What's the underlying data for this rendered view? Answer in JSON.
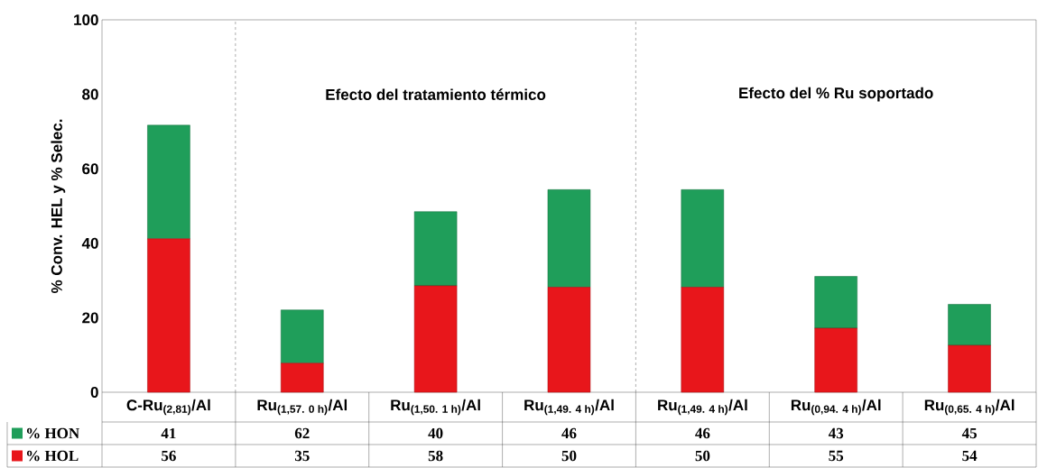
{
  "chart_data": {
    "type": "bar",
    "stacked": true,
    "ylabel": "% Conv. HEL y % Selec.",
    "legend": "bottom left",
    "categories": [
      "C-Ru$_{(2,81)}$/Al",
      "Ru$_{(1,57. 0 h)}$/Al",
      "Ru$_{(1,50. 1 h)}$/Al",
      "Ru$_{(1,49. 4 h)}$/Al",
      "Ru$_{(1,49. 4 h)}$/Al",
      "Ru$_{(0,94. 4 h)}$/Al",
      "Ru$_{(0,65. 4 h)}$/Al"
    ],
    "series": [
      {
        "name": "% HOL",
        "color": "#e8161b",
        "values": [
          41.2,
          7.8,
          28.6,
          28.2,
          28.2,
          17.2,
          12.6
        ]
      },
      {
        "name": "% HON",
        "color": "#1f9e5a",
        "values": [
          30.5,
          14.3,
          19.9,
          26.2,
          26.2,
          13.9,
          11.0
        ]
      }
    ],
    "ylim": [
      0,
      100
    ],
    "yticks": [
      0,
      20,
      40,
      60,
      80,
      100
    ],
    "annotations": [
      "Efecto del tratamiento térmico",
      "Efecto del % Ru soportado",
      "41",
      "62",
      "40",
      "46",
      "46",
      "43",
      "45",
      "56",
      "35",
      "58",
      "50",
      "50",
      "55",
      "54"
    ]
  }
}
